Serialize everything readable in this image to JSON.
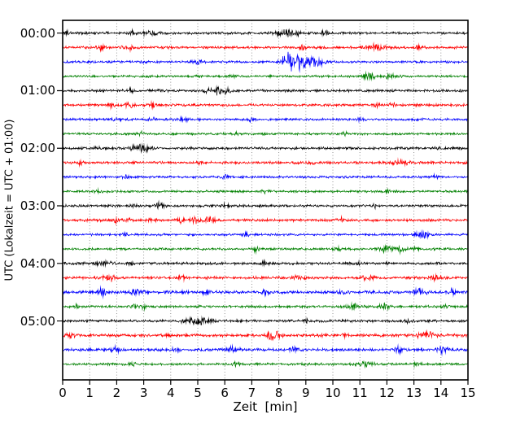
{
  "axes": {
    "x": {
      "label": "Zeit  [min]",
      "ticks": [
        "0",
        "1",
        "2",
        "3",
        "4",
        "5",
        "6",
        "7",
        "8",
        "9",
        "10",
        "11",
        "12",
        "13",
        "14",
        "15"
      ],
      "range": [
        0,
        15
      ]
    },
    "y": {
      "label": "UTC (Lokalzeit = UTC + 01:00)",
      "ticks": [
        "00:00",
        "01:00",
        "02:00",
        "03:00",
        "04:00",
        "05:00"
      ]
    }
  },
  "colors": {
    "trace_cycle": [
      "#000000",
      "#ff0000",
      "#0000ff",
      "#008000"
    ],
    "grid": "#888888",
    "frame": "#000000"
  },
  "chart_data": {
    "type": "line",
    "subtype": "seismogram-helicorder",
    "title": "",
    "xlabel": "Zeit  [min]",
    "ylabel": "UTC (Lokalzeit = UTC + 01:00)",
    "xlim": [
      0,
      15
    ],
    "grid": "vertical-dotted-per-minute",
    "legend": "none",
    "trace_duration_min": 15,
    "traces_per_hour": 4,
    "traces": [
      {
        "start": "00:00",
        "color": "#000000",
        "noise": 1.0,
        "events": [
          [
            0.15,
            2.0,
            0.05
          ],
          [
            2.55,
            1.8,
            0.06
          ],
          [
            3.2,
            2.8,
            0.18
          ],
          [
            8.2,
            2.2,
            0.25
          ],
          [
            8.65,
            2.5,
            0.12
          ],
          [
            9.7,
            1.7,
            0.08
          ]
        ]
      },
      {
        "start": "00:15",
        "color": "#ff0000",
        "noise": 1.0,
        "events": [
          [
            1.4,
            1.5,
            0.1
          ],
          [
            2.45,
            1.9,
            0.15
          ],
          [
            8.85,
            2.8,
            0.06
          ],
          [
            11.55,
            2.0,
            0.25
          ],
          [
            13.2,
            1.4,
            0.1
          ]
        ]
      },
      {
        "start": "00:30",
        "color": "#0000ff",
        "noise": 0.9,
        "events": [
          [
            5.0,
            1.3,
            0.15
          ],
          [
            8.3,
            4.5,
            0.15
          ],
          [
            8.65,
            6.0,
            0.25
          ],
          [
            9.1,
            3.5,
            0.2
          ],
          [
            9.6,
            2.0,
            0.25
          ]
        ]
      },
      {
        "start": "00:45",
        "color": "#008000",
        "noise": 0.9,
        "events": [
          [
            6.3,
            1.2,
            0.1
          ],
          [
            11.35,
            2.8,
            0.15
          ],
          [
            12.1,
            1.5,
            0.2
          ]
        ]
      },
      {
        "start": "01:00",
        "color": "#000000",
        "noise": 1.0,
        "events": [
          [
            2.5,
            1.2,
            0.1
          ],
          [
            5.35,
            1.5,
            0.08
          ],
          [
            5.75,
            3.2,
            0.15
          ],
          [
            6.1,
            1.5,
            0.1
          ]
        ]
      },
      {
        "start": "01:15",
        "color": "#ff0000",
        "noise": 1.0,
        "events": [
          [
            1.85,
            1.6,
            0.08
          ],
          [
            2.45,
            2.0,
            0.15
          ],
          [
            3.3,
            1.9,
            0.1
          ],
          [
            11.6,
            1.5,
            0.08
          ],
          [
            12.2,
            1.5,
            0.08
          ]
        ]
      },
      {
        "start": "01:30",
        "color": "#0000ff",
        "noise": 0.95,
        "events": [
          [
            2.0,
            1.5,
            0.1
          ],
          [
            3.3,
            1.5,
            0.1
          ],
          [
            4.45,
            1.6,
            0.15
          ],
          [
            7.0,
            1.3,
            0.1
          ],
          [
            11.0,
            1.3,
            0.1
          ]
        ]
      },
      {
        "start": "01:45",
        "color": "#008000",
        "noise": 0.9,
        "events": [
          [
            2.9,
            1.4,
            0.1
          ],
          [
            6.5,
            1.2,
            0.1
          ],
          [
            10.5,
            1.2,
            0.1
          ]
        ]
      },
      {
        "start": "02:00",
        "color": "#000000",
        "noise": 1.0,
        "events": [
          [
            1.3,
            1.2,
            0.08
          ],
          [
            2.55,
            1.6,
            0.08
          ],
          [
            3.0,
            3.0,
            0.22
          ],
          [
            13.9,
            1.2,
            0.1
          ]
        ]
      },
      {
        "start": "02:15",
        "color": "#ff0000",
        "noise": 1.0,
        "events": [
          [
            0.65,
            1.7,
            0.08
          ],
          [
            5.1,
            1.3,
            0.08
          ],
          [
            9.2,
            1.3,
            0.08
          ],
          [
            12.5,
            1.9,
            0.25
          ]
        ]
      },
      {
        "start": "02:30",
        "color": "#0000ff",
        "noise": 0.9,
        "events": [
          [
            2.3,
            1.6,
            0.08
          ],
          [
            6.0,
            1.2,
            0.1
          ],
          [
            13.8,
            1.4,
            0.1
          ]
        ]
      },
      {
        "start": "02:45",
        "color": "#008000",
        "noise": 0.9,
        "events": [
          [
            1.3,
            1.2,
            0.1
          ],
          [
            7.5,
            1.2,
            0.15
          ],
          [
            12.0,
            1.1,
            0.1
          ]
        ]
      },
      {
        "start": "03:00",
        "color": "#000000",
        "noise": 0.95,
        "events": [
          [
            2.6,
            1.3,
            0.1
          ],
          [
            3.55,
            2.6,
            0.12
          ],
          [
            6.0,
            1.2,
            0.1
          ],
          [
            11.55,
            1.7,
            0.05
          ]
        ]
      },
      {
        "start": "03:15",
        "color": "#ff0000",
        "noise": 1.05,
        "events": [
          [
            1.9,
            1.7,
            0.1
          ],
          [
            2.4,
            1.7,
            0.1
          ],
          [
            3.3,
            1.3,
            0.08
          ],
          [
            4.35,
            1.9,
            0.1
          ],
          [
            4.9,
            1.9,
            0.1
          ],
          [
            5.4,
            2.2,
            0.15
          ],
          [
            10.3,
            1.5,
            0.08
          ]
        ]
      },
      {
        "start": "03:30",
        "color": "#0000ff",
        "noise": 0.9,
        "events": [
          [
            2.3,
            1.2,
            0.08
          ],
          [
            6.8,
            1.2,
            0.1
          ],
          [
            13.35,
            2.6,
            0.18
          ]
        ]
      },
      {
        "start": "03:45",
        "color": "#008000",
        "noise": 0.95,
        "events": [
          [
            7.15,
            3.0,
            0.08
          ],
          [
            10.2,
            1.3,
            0.1
          ],
          [
            11.95,
            2.0,
            0.2
          ],
          [
            12.55,
            2.6,
            0.12
          ],
          [
            13.0,
            1.5,
            0.1
          ]
        ]
      },
      {
        "start": "04:00",
        "color": "#000000",
        "noise": 1.0,
        "events": [
          [
            1.5,
            1.5,
            0.2
          ],
          [
            2.5,
            1.3,
            0.1
          ],
          [
            7.5,
            1.2,
            0.1
          ],
          [
            10.9,
            1.6,
            0.06
          ]
        ]
      },
      {
        "start": "04:15",
        "color": "#ff0000",
        "noise": 1.05,
        "events": [
          [
            1.75,
            2.2,
            0.18
          ],
          [
            4.4,
            1.2,
            0.1
          ],
          [
            8.7,
            1.4,
            0.15
          ],
          [
            11.3,
            1.4,
            0.15
          ],
          [
            13.8,
            1.6,
            0.15
          ]
        ]
      },
      {
        "start": "04:30",
        "color": "#0000ff",
        "noise": 1.15,
        "events": [
          [
            1.45,
            2.3,
            0.1
          ],
          [
            2.75,
            1.9,
            0.2
          ],
          [
            5.3,
            1.3,
            0.1
          ],
          [
            7.5,
            1.4,
            0.1
          ],
          [
            10.4,
            1.3,
            0.1
          ],
          [
            13.2,
            2.2,
            0.22
          ],
          [
            14.4,
            1.5,
            0.1
          ]
        ]
      },
      {
        "start": "04:45",
        "color": "#008000",
        "noise": 0.95,
        "events": [
          [
            0.5,
            1.4,
            0.08
          ],
          [
            2.7,
            1.7,
            0.1
          ],
          [
            3.0,
            1.4,
            0.08
          ],
          [
            10.7,
            2.0,
            0.18
          ],
          [
            11.9,
            2.2,
            0.15
          ],
          [
            14.2,
            1.3,
            0.1
          ]
        ]
      },
      {
        "start": "05:00",
        "color": "#000000",
        "noise": 1.0,
        "events": [
          [
            4.65,
            2.8,
            0.15
          ],
          [
            5.1,
            2.4,
            0.15
          ],
          [
            5.5,
            1.5,
            0.1
          ],
          [
            9.0,
            1.6,
            0.06
          ],
          [
            12.8,
            1.3,
            0.15
          ]
        ]
      },
      {
        "start": "05:15",
        "color": "#ff0000",
        "noise": 1.2,
        "events": [
          [
            0.3,
            1.3,
            0.1
          ],
          [
            7.8,
            2.8,
            0.2
          ],
          [
            10.5,
            1.2,
            0.1
          ],
          [
            13.45,
            2.2,
            0.2
          ]
        ]
      },
      {
        "start": "05:30",
        "color": "#0000ff",
        "noise": 1.1,
        "events": [
          [
            1.95,
            2.2,
            0.12
          ],
          [
            4.2,
            1.2,
            0.1
          ],
          [
            6.3,
            2.0,
            0.15
          ],
          [
            8.55,
            1.6,
            0.1
          ],
          [
            12.45,
            1.8,
            0.1
          ],
          [
            14.05,
            1.9,
            0.12
          ]
        ]
      },
      {
        "start": "05:45",
        "color": "#008000",
        "noise": 0.95,
        "events": [
          [
            2.6,
            1.2,
            0.1
          ],
          [
            6.4,
            1.3,
            0.1
          ],
          [
            11.2,
            1.8,
            0.2
          ],
          [
            13.05,
            1.6,
            0.12
          ]
        ]
      }
    ]
  }
}
